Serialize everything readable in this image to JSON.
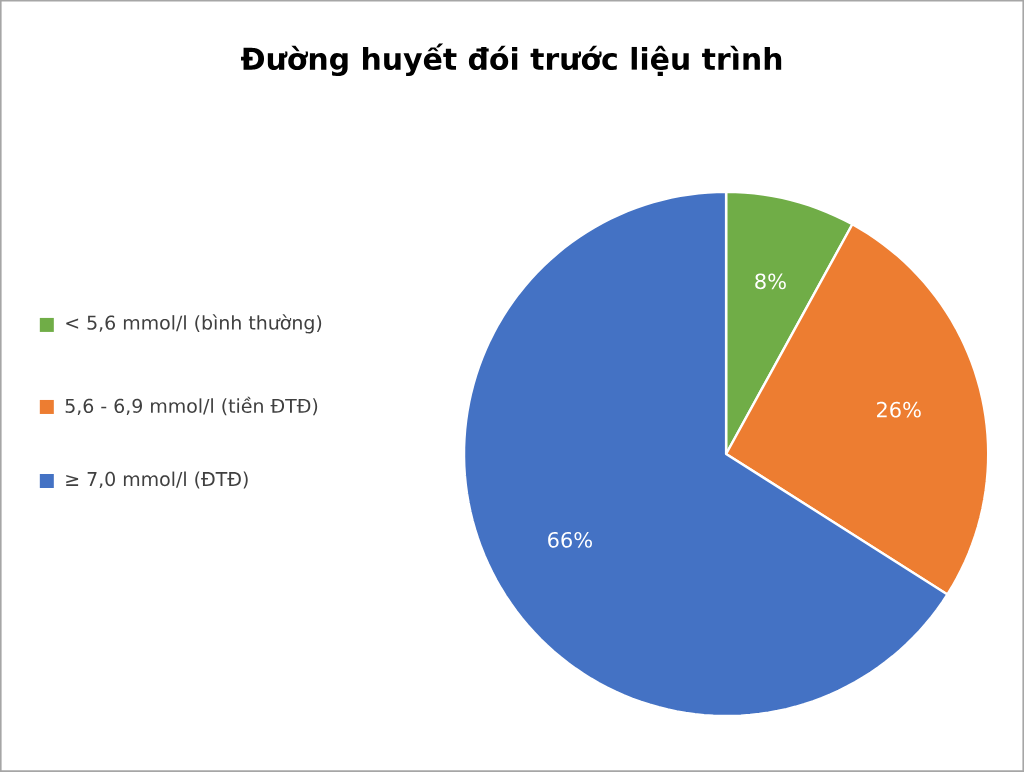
{
  "chart_data": {
    "type": "pie",
    "title": "Đường huyết đói trước liệu trình",
    "categories": [
      "< 5,6 mmol/l (bình thường)",
      "5,6 - 6,9 mmol/l (tiền ĐTĐ)",
      "≥ 7,0 mmol/l (ĐTĐ)"
    ],
    "values": [
      8,
      26,
      66
    ],
    "colors": [
      "#70ad47",
      "#ed7d31",
      "#4472c4"
    ],
    "value_labels": [
      "8%",
      "26%",
      "66%"
    ],
    "legend": "left"
  }
}
